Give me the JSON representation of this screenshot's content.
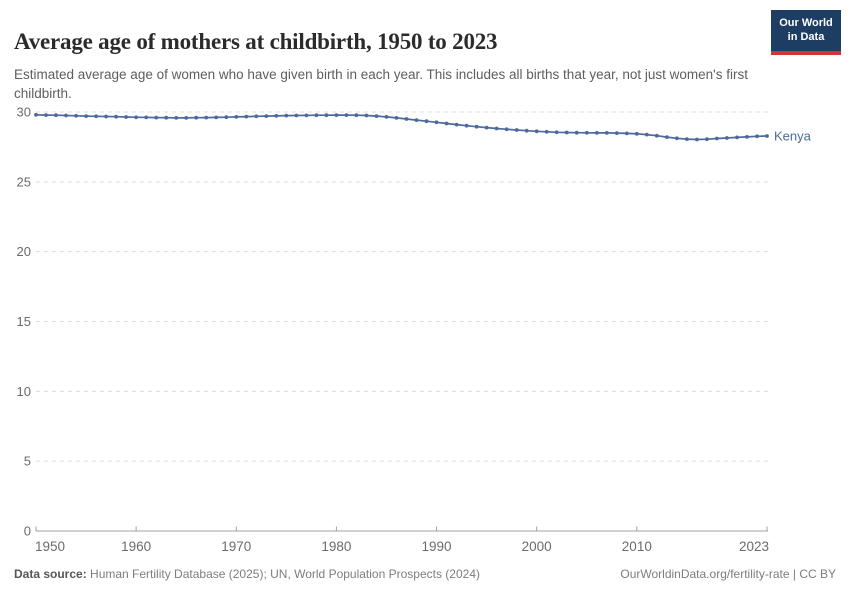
{
  "header": {
    "title": "Average age of mothers at childbirth, 1950 to 2023",
    "subtitle": "Estimated average age of women who have given birth in each year. This includes all births that year, not just women's first childbirth.",
    "logo": {
      "line1": "Our World",
      "line2": "in Data",
      "bg_color": "#1d3d63",
      "bar_color": "#cf3541"
    }
  },
  "chart_data": {
    "type": "line",
    "title": "Average age of mothers at childbirth, 1950 to 2023",
    "xlabel": "",
    "ylabel": "",
    "xlim": [
      1950,
      2023
    ],
    "ylim": [
      0,
      30
    ],
    "x_ticks": [
      1950,
      1960,
      1970,
      1980,
      1990,
      2000,
      2010,
      2023
    ],
    "y_ticks": [
      0,
      5,
      10,
      15,
      20,
      25,
      30
    ],
    "grid": "dashed-horizontal",
    "legend_position": "end-of-line-label",
    "x": [
      1950,
      1951,
      1952,
      1953,
      1954,
      1955,
      1956,
      1957,
      1958,
      1959,
      1960,
      1961,
      1962,
      1963,
      1964,
      1965,
      1966,
      1967,
      1968,
      1969,
      1970,
      1971,
      1972,
      1973,
      1974,
      1975,
      1976,
      1977,
      1978,
      1979,
      1980,
      1981,
      1982,
      1983,
      1984,
      1985,
      1986,
      1987,
      1988,
      1989,
      1990,
      1991,
      1992,
      1993,
      1994,
      1995,
      1996,
      1997,
      1998,
      1999,
      2000,
      2001,
      2002,
      2003,
      2004,
      2005,
      2006,
      2007,
      2008,
      2009,
      2010,
      2011,
      2012,
      2013,
      2014,
      2015,
      2016,
      2017,
      2018,
      2019,
      2020,
      2021,
      2022,
      2023
    ],
    "series": [
      {
        "name": "Kenya",
        "color": "#4C6A9C",
        "values": [
          29.8,
          29.78,
          29.77,
          29.75,
          29.73,
          29.71,
          29.69,
          29.68,
          29.66,
          29.64,
          29.62,
          29.61,
          29.6,
          29.59,
          29.58,
          29.58,
          29.59,
          29.6,
          29.61,
          29.63,
          29.65,
          29.67,
          29.69,
          29.71,
          29.72,
          29.74,
          29.75,
          29.76,
          29.77,
          29.77,
          29.78,
          29.78,
          29.77,
          29.75,
          29.71,
          29.65,
          29.58,
          29.5,
          29.42,
          29.34,
          29.26,
          29.18,
          29.1,
          29.02,
          28.95,
          28.88,
          28.82,
          28.76,
          28.71,
          28.66,
          28.62,
          28.58,
          28.55,
          28.53,
          28.52,
          28.51,
          28.5,
          28.5,
          28.49,
          28.47,
          28.44,
          28.38,
          28.3,
          28.2,
          28.12,
          28.06,
          28.03,
          28.05,
          28.1,
          28.14,
          28.18,
          28.22,
          28.26,
          28.28
        ]
      }
    ],
    "axis_color": "#a0a0a0",
    "gridline_color": "#dcdcdc",
    "tick_label_color": "#6b6b6b"
  },
  "footer": {
    "source_label": "Data source:",
    "source_text": " Human Fertility Database (2025); UN, World Population Prospects (2024)",
    "right_text": "OurWorldinData.org/fertility-rate | CC BY"
  }
}
